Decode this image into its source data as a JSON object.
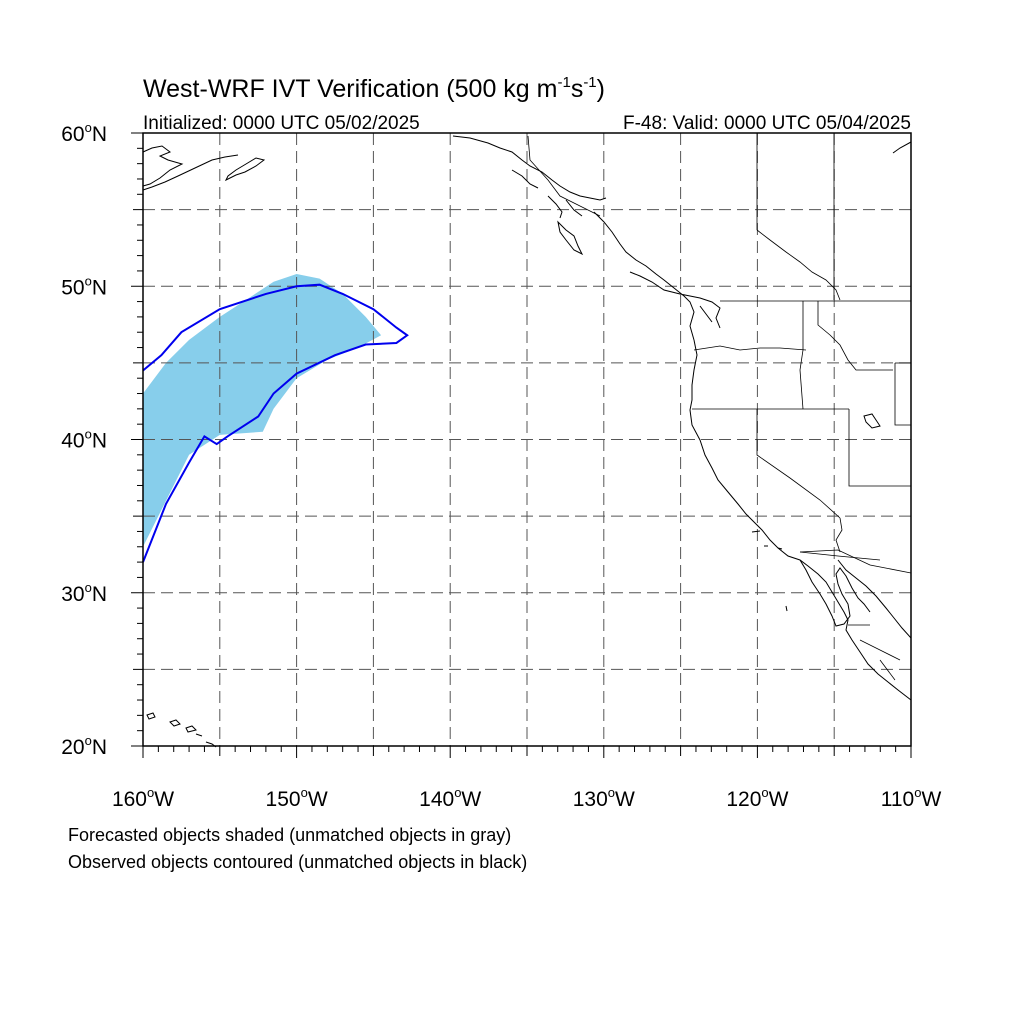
{
  "title": {
    "prefix": "West-WRF IVT Verification (500 kg m",
    "exp1": "-1",
    "mid": "s",
    "exp2": "-1",
    "suffix": ")"
  },
  "initialized": "Initialized: 0000 UTC 05/02/2025",
  "valid": "F-48: Valid: 0000 UTC 05/04/2025",
  "lat_labels": [
    {
      "value": 60,
      "num": "60",
      "unit": "N"
    },
    {
      "value": 50,
      "num": "50",
      "unit": "N"
    },
    {
      "value": 40,
      "num": "40",
      "unit": "N"
    },
    {
      "value": 30,
      "num": "30",
      "unit": "N"
    },
    {
      "value": 20,
      "num": "20",
      "unit": "N"
    }
  ],
  "lon_labels": [
    {
      "value": -160,
      "num": "160",
      "unit": "W"
    },
    {
      "value": -150,
      "num": "150",
      "unit": "W"
    },
    {
      "value": -140,
      "num": "140",
      "unit": "W"
    },
    {
      "value": -130,
      "num": "130",
      "unit": "W"
    },
    {
      "value": -120,
      "num": "120",
      "unit": "W"
    },
    {
      "value": -110,
      "num": "110",
      "unit": "W"
    }
  ],
  "map": {
    "lon_range": [
      -160,
      -110
    ],
    "lat_range": [
      20,
      60
    ],
    "grid_lons": [
      -155,
      -150,
      -145,
      -140,
      -135,
      -130,
      -125,
      -120,
      -115
    ],
    "grid_lats": [
      25,
      30,
      35,
      40,
      45,
      50,
      55
    ],
    "forecast_fill_color": "#87ceeb",
    "observed_contour_color": "#0000ee",
    "forecast_object": [
      [
        -160.0,
        43.0
      ],
      [
        -158.5,
        45.0
      ],
      [
        -157.0,
        46.5
      ],
      [
        -155.0,
        48.0
      ],
      [
        -153.0,
        49.3
      ],
      [
        -151.5,
        50.3
      ],
      [
        -150.0,
        50.8
      ],
      [
        -148.5,
        50.5
      ],
      [
        -147.0,
        49.5
      ],
      [
        -145.5,
        48.0
      ],
      [
        -144.5,
        46.8
      ],
      [
        -146.0,
        46.0
      ],
      [
        -148.0,
        45.2
      ],
      [
        -150.0,
        44.0
      ],
      [
        -151.5,
        42.0
      ],
      [
        -152.2,
        40.5
      ],
      [
        -155.0,
        40.3
      ],
      [
        -157.0,
        39.0
      ],
      [
        -158.5,
        36.0
      ],
      [
        -160.0,
        33.0
      ]
    ],
    "observed_object": [
      [
        -160.0,
        44.5
      ],
      [
        -158.8,
        45.5
      ],
      [
        -157.5,
        47.0
      ],
      [
        -155.0,
        48.5
      ],
      [
        -152.0,
        49.5
      ],
      [
        -150.0,
        50.0
      ],
      [
        -148.5,
        50.1
      ],
      [
        -147.0,
        49.5
      ],
      [
        -145.0,
        48.5
      ],
      [
        -143.5,
        47.3
      ],
      [
        -142.8,
        46.8
      ],
      [
        -143.5,
        46.3
      ],
      [
        -145.5,
        46.2
      ],
      [
        -147.5,
        45.5
      ],
      [
        -150.0,
        44.3
      ],
      [
        -151.5,
        43.0
      ],
      [
        -152.5,
        41.5
      ],
      [
        -154.5,
        40.2
      ],
      [
        -155.2,
        39.7
      ],
      [
        -156.0,
        40.2
      ],
      [
        -157.0,
        38.5
      ],
      [
        -158.5,
        35.8
      ],
      [
        -160.0,
        32.0
      ]
    ]
  },
  "captions": [
    "Forecasted objects shaded (unmatched objects in gray)",
    "Observed objects contoured (unmatched objects in black)"
  ]
}
